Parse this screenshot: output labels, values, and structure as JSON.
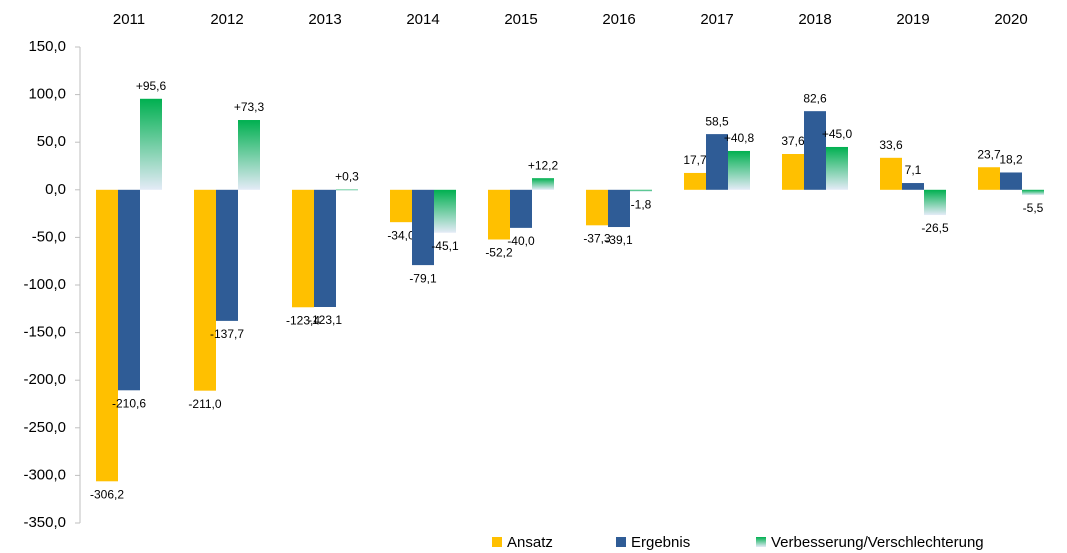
{
  "chart_data": {
    "type": "bar",
    "categories": [
      "2011",
      "2012",
      "2013",
      "2014",
      "2015",
      "2016",
      "2017",
      "2018",
      "2019",
      "2020"
    ],
    "series": [
      {
        "name": "Ansatz",
        "color": "#ffc000",
        "values": [
          -306.2,
          -211.0,
          -123.4,
          -34.0,
          -52.2,
          -37.3,
          17.7,
          37.6,
          33.6,
          23.7
        ],
        "value_labels": [
          "-306,2",
          "-211,0",
          "-123,4",
          "-34,0",
          "-52,2",
          "-37,3",
          "17,7",
          "37,6",
          "33,6",
          "23,7"
        ]
      },
      {
        "name": "Ergebnis",
        "color": "#2f5c96",
        "values": [
          -210.6,
          -137.7,
          -123.1,
          -79.1,
          -40.0,
          -39.1,
          58.5,
          82.6,
          7.1,
          18.2
        ],
        "value_labels": [
          "-210,6",
          "-137,7",
          "-123,1",
          "-79,1",
          "-40,0",
          "-39,1",
          "58,5",
          "82,6",
          "7,1",
          "18,2"
        ]
      },
      {
        "name": "Verbesserung/Verschlechterung",
        "color": "#00b050",
        "values": [
          95.6,
          73.3,
          0.3,
          -45.1,
          12.2,
          -1.8,
          40.8,
          45.0,
          -26.5,
          -5.5
        ],
        "value_labels": [
          "+95,6",
          "+73,3",
          "+0,3",
          "-45,1",
          "+12,2",
          "-1,8",
          "+40,8",
          "+45,0",
          "-26,5",
          "-5,5"
        ]
      }
    ],
    "ylim": [
      -350,
      150
    ],
    "yticks": [
      {
        "value": -350,
        "label": "-350,0"
      },
      {
        "value": -300,
        "label": "-300,0"
      },
      {
        "value": -250,
        "label": "-250,0"
      },
      {
        "value": -200,
        "label": "-200,0"
      },
      {
        "value": -150,
        "label": "-150,0"
      },
      {
        "value": -100,
        "label": "-100,0"
      },
      {
        "value": -50,
        "label": "-50,0"
      },
      {
        "value": 0,
        "label": "0,0"
      },
      {
        "value": 50,
        "label": "50,0"
      },
      {
        "value": 100,
        "label": "100,0"
      },
      {
        "value": 150,
        "label": "150,0"
      }
    ],
    "legend": "bottom"
  }
}
